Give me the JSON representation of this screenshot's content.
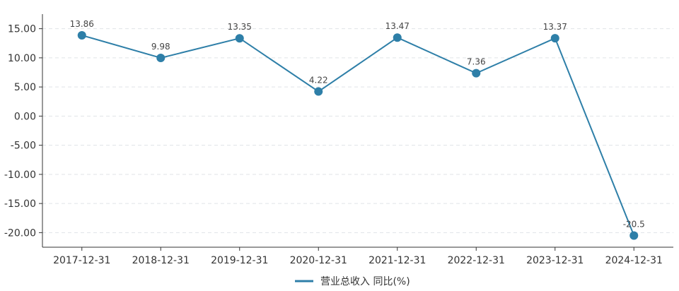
{
  "chart_data": {
    "type": "line",
    "categories": [
      "2017-12-31",
      "2018-12-31",
      "2019-12-31",
      "2020-12-31",
      "2021-12-31",
      "2022-12-31",
      "2023-12-31",
      "2024-12-31"
    ],
    "series": [
      {
        "name": "营业总收入 同比(%)",
        "values": [
          13.86,
          9.98,
          13.35,
          4.22,
          13.47,
          7.36,
          13.37,
          -20.5
        ],
        "labels": [
          "13.86",
          "9.98",
          "13.35",
          "4.22",
          "13.47",
          "7.36",
          "13.37",
          "-20.5"
        ],
        "color": "#2e7fa8"
      }
    ],
    "y_ticks": [
      15,
      10,
      5,
      0,
      -5,
      -10,
      -15,
      -20
    ],
    "y_tick_labels": [
      "15.00",
      "10.00",
      "5.00",
      "0.00",
      "-5.00",
      "-10.00",
      "-15.00",
      "-20.00"
    ],
    "ylim": [
      -22.5,
      17.5
    ],
    "grid": true,
    "legend_position": "bottom-center"
  }
}
